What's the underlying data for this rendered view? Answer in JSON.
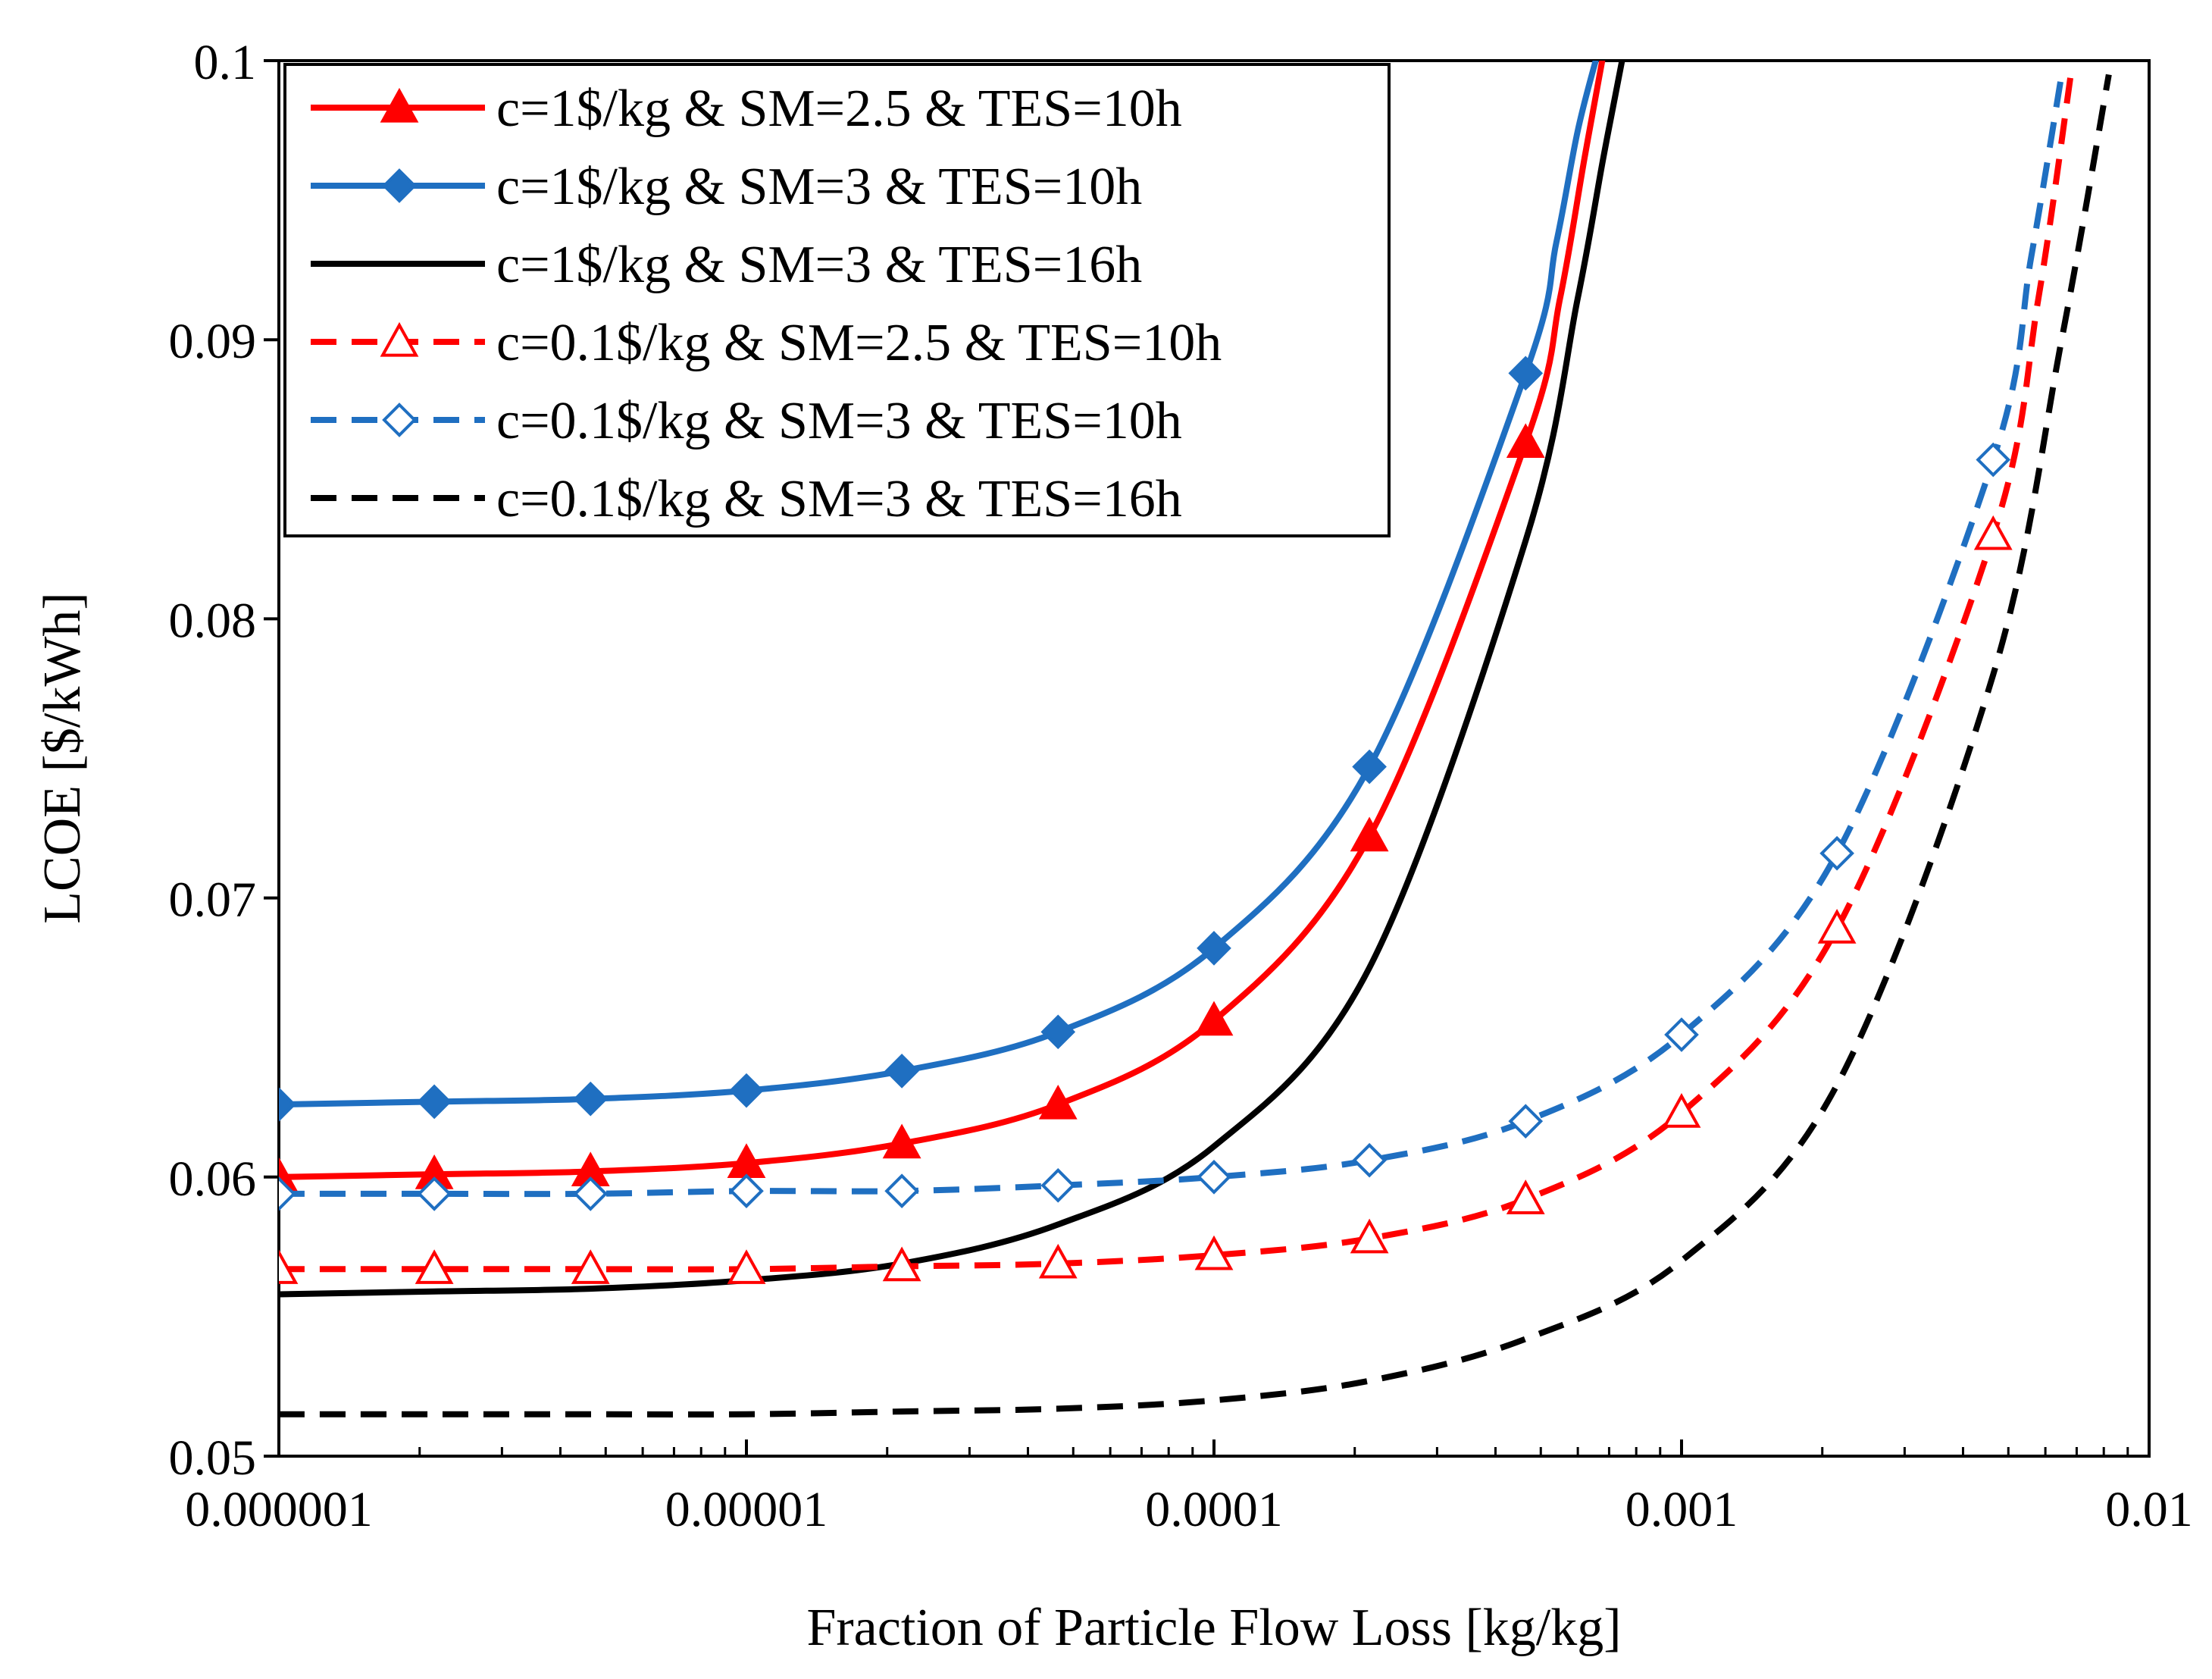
{
  "chart_data": {
    "type": "line",
    "title": "",
    "xlabel": "Fraction of Particle Flow Loss [kg/kg]",
    "ylabel": "LCOE [$/kWh]",
    "xscale": "log",
    "xlim": [
      1e-06,
      0.01
    ],
    "ylim": [
      0.05,
      0.1
    ],
    "grid": false,
    "legend_position": "top-left",
    "x_tick_labels": [
      "0.000001",
      "0.00001",
      "0.0001",
      "0.001",
      "0.01"
    ],
    "y_tick_labels": [
      "0.05",
      "0.06",
      "0.07",
      "0.08",
      "0.09",
      "0.1"
    ],
    "colors": {
      "red": "#ff0000",
      "blue": "#1f6fc1",
      "black": "#000000"
    },
    "series": [
      {
        "name": "c=1$/kg & SM=2.5 & TES=10h",
        "color": "#ff0000",
        "dash": "solid",
        "marker": "triangle",
        "filled": true,
        "x": [
          1e-06,
          2.15e-06,
          4.64e-06,
          1e-05,
          2.15e-05,
          4.64e-05,
          0.0001,
          0.000215,
          0.000464,
          0.00055,
          0.00062,
          0.00068
        ],
        "y": [
          0.06,
          0.0601,
          0.0602,
          0.0605,
          0.0612,
          0.0626,
          0.0656,
          0.0722,
          0.0863,
          0.0915,
          0.0965,
          0.1002
        ],
        "marker_x": [
          1e-06,
          2.15e-06,
          4.64e-06,
          1e-05,
          2.15e-05,
          4.64e-05,
          0.0001,
          0.000215,
          0.000464
        ],
        "marker_y": [
          0.06,
          0.0601,
          0.0602,
          0.0605,
          0.0612,
          0.0626,
          0.0656,
          0.0722,
          0.0863
        ]
      },
      {
        "name": "c=1$/kg & SM=3 & TES=10h",
        "color": "#1f6fc1",
        "dash": "solid",
        "marker": "diamond",
        "filled": true,
        "x": [
          1e-06,
          2.15e-06,
          4.64e-06,
          1e-05,
          2.15e-05,
          4.64e-05,
          0.0001,
          0.000215,
          0.000464,
          0.00054,
          0.0006,
          0.00066
        ],
        "y": [
          0.0626,
          0.0627,
          0.0628,
          0.0631,
          0.0638,
          0.0652,
          0.0682,
          0.0747,
          0.0888,
          0.0935,
          0.0975,
          0.1002
        ],
        "marker_x": [
          1e-06,
          2.15e-06,
          4.64e-06,
          1e-05,
          2.15e-05,
          4.64e-05,
          0.0001,
          0.000215,
          0.000464
        ],
        "marker_y": [
          0.0626,
          0.0627,
          0.0628,
          0.0631,
          0.0638,
          0.0652,
          0.0682,
          0.0747,
          0.0888
        ]
      },
      {
        "name": "c=1$/kg & SM=3 & TES=16h",
        "color": "#000000",
        "dash": "solid",
        "marker": "none",
        "filled": false,
        "x": [
          1e-06,
          2.15e-06,
          4.64e-06,
          1e-05,
          2.15e-05,
          4.64e-05,
          0.0001,
          0.000215,
          0.000464,
          0.0006,
          0.00068,
          0.00075
        ],
        "y": [
          0.0558,
          0.0559,
          0.056,
          0.0563,
          0.0569,
          0.0583,
          0.0611,
          0.0675,
          0.0828,
          0.0915,
          0.0965,
          0.1002
        ],
        "marker_x": [],
        "marker_y": []
      },
      {
        "name": "c=0.1$/kg & SM=2.5 & TES=10h",
        "color": "#ff0000",
        "dash": "dashed",
        "marker": "triangle",
        "filled": false,
        "x": [
          1e-06,
          2.15e-06,
          4.64e-06,
          1e-05,
          2.15e-05,
          4.64e-05,
          0.0001,
          0.000215,
          0.000464,
          0.001,
          0.00215,
          0.00464,
          0.0058,
          0.0068
        ],
        "y": [
          0.0567,
          0.0567,
          0.0567,
          0.0567,
          0.0568,
          0.0569,
          0.0572,
          0.0578,
          0.0592,
          0.0623,
          0.0689,
          0.083,
          0.0915,
          0.0995
        ],
        "marker_x": [
          1e-06,
          2.15e-06,
          4.64e-06,
          1e-05,
          2.15e-05,
          4.64e-05,
          0.0001,
          0.000215,
          0.000464,
          0.001,
          0.00215,
          0.00464
        ],
        "marker_y": [
          0.0567,
          0.0567,
          0.0567,
          0.0567,
          0.0568,
          0.0569,
          0.0572,
          0.0578,
          0.0592,
          0.0623,
          0.0689,
          0.083
        ]
      },
      {
        "name": "c=0.1$/kg & SM=3 & TES=10h",
        "color": "#1f6fc1",
        "dash": "dashed",
        "marker": "diamond",
        "filled": false,
        "x": [
          1e-06,
          2.15e-06,
          4.64e-06,
          1e-05,
          2.15e-05,
          4.64e-05,
          0.0001,
          0.000215,
          0.000464,
          0.001,
          0.00215,
          0.00464,
          0.0056,
          0.0065
        ],
        "y": [
          0.0594,
          0.0594,
          0.0594,
          0.0595,
          0.0595,
          0.0597,
          0.06,
          0.0606,
          0.062,
          0.0651,
          0.0716,
          0.0857,
          0.093,
          0.0995
        ],
        "marker_x": [
          1e-06,
          2.15e-06,
          4.64e-06,
          1e-05,
          2.15e-05,
          4.64e-05,
          0.0001,
          0.000215,
          0.000464,
          0.001,
          0.00215,
          0.00464
        ],
        "marker_y": [
          0.0594,
          0.0594,
          0.0594,
          0.0595,
          0.0595,
          0.0597,
          0.06,
          0.0606,
          0.062,
          0.0651,
          0.0716,
          0.0857
        ]
      },
      {
        "name": "c=0.1$/kg & SM=3 & TES=16h",
        "color": "#000000",
        "dash": "dashed",
        "marker": "none",
        "filled": false,
        "x": [
          1e-06,
          2.15e-06,
          4.64e-06,
          1e-05,
          2.15e-05,
          4.64e-05,
          0.0001,
          0.000215,
          0.000464,
          0.001,
          0.00215,
          0.00464,
          0.0065,
          0.0082
        ],
        "y": [
          0.0515,
          0.0515,
          0.0515,
          0.0515,
          0.0516,
          0.0517,
          0.052,
          0.0527,
          0.0542,
          0.057,
          0.0633,
          0.078,
          0.09,
          0.0995
        ],
        "marker_x": [],
        "marker_y": []
      }
    ]
  }
}
